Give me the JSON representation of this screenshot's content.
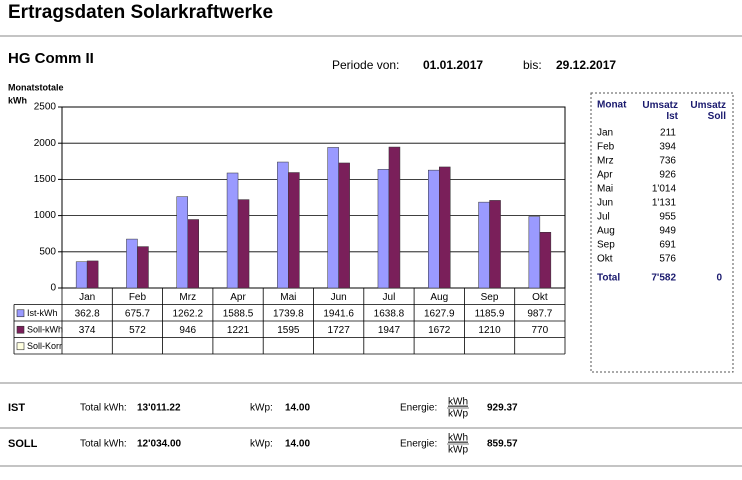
{
  "header": {
    "title": "Ertragsdaten Solarkraftwerke",
    "plant": "HG Comm II",
    "period_from_label": "Periode von:",
    "period_from": "01.01.2017",
    "period_to_label": "bis:",
    "period_to": "29.12.2017"
  },
  "chart_data": {
    "type": "bar",
    "y_label": "Monatstotale",
    "y_unit": "kWh",
    "categories": [
      "Jan",
      "Feb",
      "Mrz",
      "Apr",
      "Mai",
      "Jun",
      "Jul",
      "Aug",
      "Sep",
      "Okt"
    ],
    "series": [
      {
        "name": "Ist-kWh",
        "color": "#9a9aff",
        "values": [
          362.8,
          675.7,
          1262.2,
          1588.5,
          1739.8,
          1941.6,
          1638.8,
          1627.9,
          1185.9,
          987.7
        ]
      },
      {
        "name": "Soll-kWh",
        "color": "#7a1f5a",
        "values": [
          374,
          572,
          946,
          1221,
          1595,
          1727,
          1947,
          1672,
          1210,
          770
        ]
      },
      {
        "name": "Soll-Korr",
        "color": "#ffffe0",
        "values": [
          null,
          null,
          null,
          null,
          null,
          null,
          null,
          null,
          null,
          null
        ]
      }
    ],
    "ylim": [
      0,
      2500
    ],
    "yticks": [
      0,
      500,
      1000,
      1500,
      2000,
      2500
    ],
    "grid": true
  },
  "side_table": {
    "headers": [
      "Monat",
      "Umsatz Ist",
      "Umsatz Soll"
    ],
    "rows": [
      [
        "Jan",
        "211"
      ],
      [
        "Feb",
        "394"
      ],
      [
        "Mrz",
        "736"
      ],
      [
        "Apr",
        "926"
      ],
      [
        "Mai",
        "1'014"
      ],
      [
        "Jun",
        "1'131"
      ],
      [
        "Jul",
        "955"
      ],
      [
        "Aug",
        "949"
      ],
      [
        "Sep",
        "691"
      ],
      [
        "Okt",
        "576"
      ]
    ],
    "total": [
      "Total",
      "7'582",
      "0"
    ]
  },
  "summary": {
    "energy_unit_num": "kWh",
    "energy_unit_den": "kWp",
    "rows": [
      {
        "label": "IST",
        "total_label": "Total kWh:",
        "total": "13'011.22",
        "kwp_label": "kWp:",
        "kwp": "14.00",
        "energy_label": "Energie:",
        "energy": "929.37"
      },
      {
        "label": "SOLL",
        "total_label": "Total kWh:",
        "total": "12'034.00",
        "kwp_label": "kWp:",
        "kwp": "14.00",
        "energy_label": "Energie:",
        "energy": "859.57"
      }
    ]
  }
}
